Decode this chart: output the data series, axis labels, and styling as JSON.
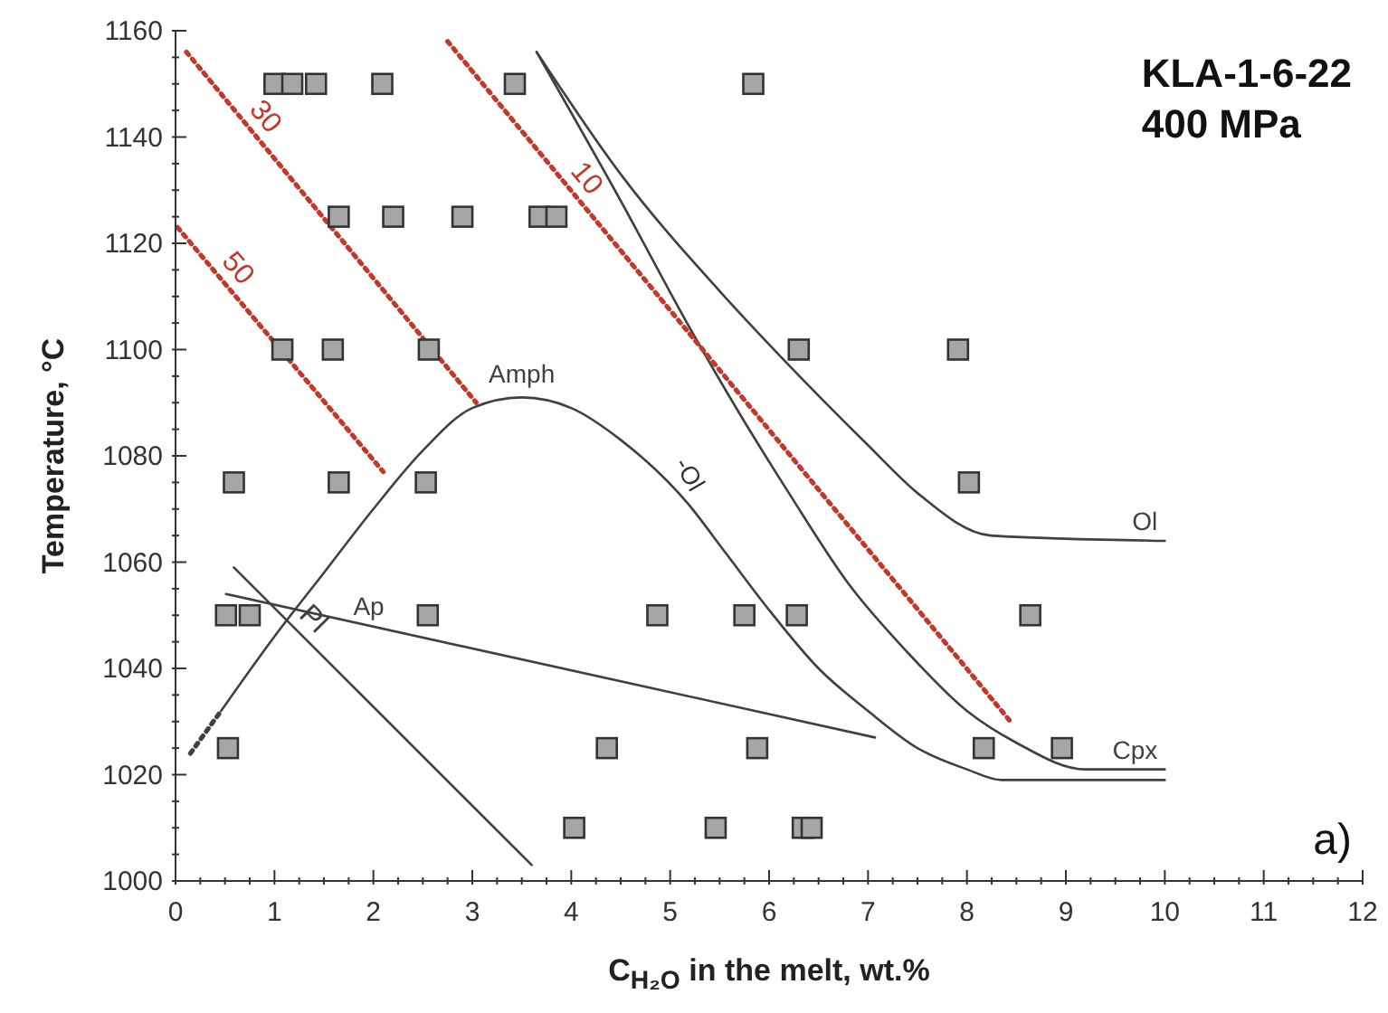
{
  "chart_data": {
    "type": "scatter",
    "title": "KLA-1-6-22",
    "subtitle": "400 MPa",
    "xlabel": "C$_{H₂O}$ in the melt, wt.%",
    "ylabel": "Temperature, °C",
    "annotations": [
      "a)",
      "-Ol"
    ],
    "series": [
      {
        "color": "#a6a6a6",
        "marker": "square",
        "x": [
          1.0,
          1.18,
          1.42,
          2.09,
          3.43,
          5.84,
          1.65,
          2.2,
          2.9,
          3.68,
          3.85,
          1.08,
          1.59,
          2.56,
          6.3,
          7.91,
          0.59,
          1.65,
          2.53,
          8.02,
          0.51,
          0.75,
          2.55,
          4.87,
          5.75,
          6.28,
          8.64,
          0.53,
          4.36,
          5.88,
          8.17,
          8.96,
          4.03,
          5.46,
          6.34,
          6.43
        ],
        "values": [
          1150,
          1150,
          1150,
          1150,
          1150,
          1150,
          1125,
          1125,
          1125,
          1125,
          1125,
          1100,
          1100,
          1100,
          1100,
          1100,
          1075,
          1075,
          1075,
          1075,
          1050,
          1050,
          1050,
          1050,
          1050,
          1050,
          1050,
          1025,
          1025,
          1025,
          1025,
          1025,
          1010,
          1010,
          1010,
          1010
        ]
      },
      {
        "type": "line",
        "name": "Amph",
        "color": "#404040",
        "marker": "none",
        "line_style": "solid",
        "x": [
          0.46,
          1,
          1.5,
          2,
          2.5,
          3,
          3.5,
          4,
          4.5,
          5.18,
          5.55,
          6,
          6.5,
          7,
          7.5,
          8,
          8.35,
          10
        ],
        "values": [
          1032,
          1046,
          1058,
          1070,
          1081,
          1089,
          1091,
          1089,
          1083,
          1071,
          1062,
          1051,
          1040,
          1032,
          1025,
          1021,
          1019,
          1019
        ]
      },
      {
        "type": "line",
        "color": "#404040",
        "marker": "none",
        "line_style": "dotted",
        "x": [
          0.15,
          0.46
        ],
        "values": [
          1024,
          1032
        ]
      },
      {
        "type": "line",
        "name": "Ol",
        "color": "#404040",
        "marker": "none",
        "line_style": "solid",
        "x": [
          3.65,
          4.5,
          5.5,
          6.1,
          7,
          7.5,
          8.24,
          10
        ],
        "values": [
          1156,
          1133,
          1111,
          1099,
          1082,
          1073,
          1065,
          1064
        ]
      },
      {
        "type": "line",
        "name": "Cpx",
        "color": "#404040",
        "marker": "none",
        "line_style": "solid",
        "x": [
          3.65,
          4.5,
          5.2,
          5.7,
          6.2,
          6.8,
          7.4,
          8,
          8.5,
          9.2,
          10
        ],
        "values": [
          1156,
          1128,
          1104,
          1088,
          1073,
          1056,
          1043,
          1032,
          1026,
          1021,
          1021
        ]
      },
      {
        "type": "line",
        "name": "Ap",
        "color": "#404040",
        "marker": "none",
        "line_style": "solid",
        "x": [
          0.51,
          7.07
        ],
        "values": [
          1054,
          1027
        ]
      },
      {
        "type": "line",
        "name": "Pl",
        "color": "#404040",
        "marker": "none",
        "line_style": "solid",
        "x": [
          0.59,
          3.6
        ],
        "values": [
          1059,
          1003
        ]
      },
      {
        "type": "line",
        "name": "10",
        "color": "#c0392b",
        "marker": "none",
        "line_style": "dotted",
        "x": [
          2.75,
          8.44
        ],
        "values": [
          1158,
          1030
        ]
      },
      {
        "type": "line",
        "name": "30",
        "color": "#c0392b",
        "marker": "none",
        "line_style": "dotted",
        "x": [
          0.11,
          3.04
        ],
        "values": [
          1156,
          1090
        ]
      },
      {
        "type": "line",
        "name": "50",
        "color": "#c0392b",
        "marker": "none",
        "line_style": "dotted",
        "x": [
          0.02,
          2.1
        ],
        "values": [
          1123,
          1077
        ]
      }
    ],
    "xlim": [
      0,
      12
    ],
    "ylim": [
      1000,
      1160
    ],
    "xticks": [
      0,
      {
        "value": 0.25,
        "label": null
      },
      {
        "value": 0.5,
        "label": null
      },
      {
        "value": 0.75,
        "label": null
      },
      1,
      {
        "value": 1.25,
        "label": null
      },
      {
        "value": 1.5,
        "label": null
      },
      {
        "value": 1.75,
        "label": null
      },
      2,
      {
        "value": 2.25,
        "label": null
      },
      {
        "value": 2.5,
        "label": null
      },
      {
        "value": 2.75,
        "label": null
      },
      3,
      {
        "value": 3.25,
        "label": null
      },
      {
        "value": 3.5,
        "label": null
      },
      {
        "value": 3.75,
        "label": null
      },
      4,
      {
        "value": 4.25,
        "label": null
      },
      {
        "value": 4.5,
        "label": null
      },
      {
        "value": 4.75,
        "label": null
      },
      5,
      {
        "value": 5.25,
        "label": null
      },
      {
        "value": 5.5,
        "label": null
      },
      {
        "value": 5.75,
        "label": null
      },
      6,
      {
        "value": 6.25,
        "label": null
      },
      {
        "value": 6.5,
        "label": null
      },
      {
        "value": 6.75,
        "label": null
      },
      7,
      {
        "value": 7.25,
        "label": null
      },
      {
        "value": 7.5,
        "label": null
      },
      {
        "value": 7.75,
        "label": null
      },
      8,
      {
        "value": 8.25,
        "label": null
      },
      {
        "value": 8.5,
        "label": null
      },
      {
        "value": 8.75,
        "label": null
      },
      9,
      {
        "value": 9.25,
        "label": null
      },
      {
        "value": 9.5,
        "label": null
      },
      {
        "value": 9.75,
        "label": null
      },
      10,
      {
        "value": 10.25,
        "label": null
      },
      {
        "value": 10.5,
        "label": null
      },
      {
        "value": 10.75,
        "label": null
      },
      11,
      {
        "value": 11.25,
        "label": null
      },
      {
        "value": 11.5,
        "label": null
      },
      {
        "value": 11.75,
        "label": null
      },
      12
    ],
    "yticks": [
      1000,
      {
        "value": 1005,
        "label": null
      },
      {
        "value": 1010,
        "label": null
      },
      {
        "value": 1015,
        "label": null
      },
      1020,
      {
        "value": 1025,
        "label": null
      },
      {
        "value": 1030,
        "label": null
      },
      {
        "value": 1035,
        "label": null
      },
      1040,
      {
        "value": 1045,
        "label": null
      },
      {
        "value": 1050,
        "label": null
      },
      {
        "value": 1055,
        "label": null
      },
      1060,
      {
        "value": 1065,
        "label": null
      },
      {
        "value": 1070,
        "label": null
      },
      {
        "value": 1075,
        "label": null
      },
      1080,
      {
        "value": 1085,
        "label": null
      },
      {
        "value": 1090,
        "label": null
      },
      {
        "value": 1095,
        "label": null
      },
      1100,
      {
        "value": 1105,
        "label": null
      },
      {
        "value": 1110,
        "label": null
      },
      {
        "value": 1115,
        "label": null
      },
      1120,
      {
        "value": 1125,
        "label": null
      },
      {
        "value": 1130,
        "label": null
      },
      {
        "value": 1135,
        "label": null
      },
      1140,
      {
        "value": 1145,
        "label": null
      },
      {
        "value": 1150,
        "label": null
      },
      {
        "value": 1155,
        "label": null
      },
      1160
    ],
    "grid": false,
    "legend": false
  }
}
